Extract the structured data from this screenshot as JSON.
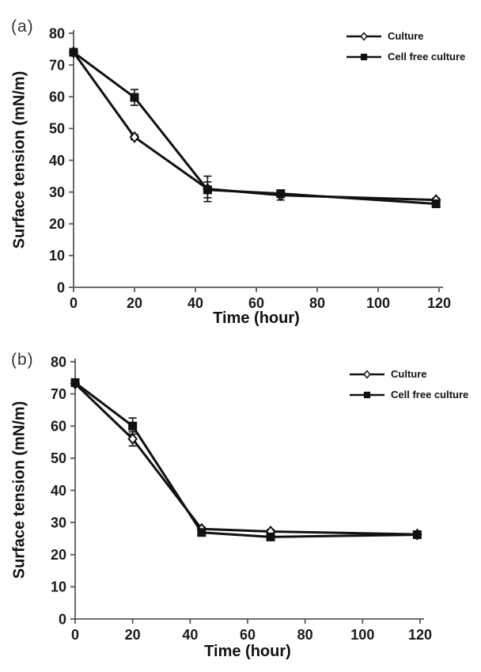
{
  "figure": {
    "background": "#ffffff"
  },
  "colors": {
    "series": "#111111",
    "axis": "#595959",
    "text": "#1a1a1a"
  },
  "chart_data": [
    {
      "type": "line",
      "panel_label": "(a)",
      "xlabel": "Time (hour)",
      "ylabel": "Surface tension (mN/m)",
      "xlim": [
        0,
        120
      ],
      "ylim": [
        0,
        80
      ],
      "xticks": [
        0,
        20,
        40,
        60,
        80,
        100,
        120
      ],
      "yticks": [
        0,
        10,
        20,
        30,
        40,
        50,
        60,
        70,
        80
      ],
      "grid": false,
      "legend_position": "top-right",
      "x": [
        0,
        20,
        44,
        68,
        119
      ],
      "series": [
        {
          "name": "Culture",
          "marker": "diamond-open",
          "values": [
            74,
            47.3,
            31,
            29,
            27.5
          ],
          "errors": [
            0.8,
            0.8,
            4,
            1.5,
            0.6
          ]
        },
        {
          "name": "Cell free culture",
          "marker": "square-filled",
          "values": [
            74,
            59.8,
            30.7,
            29.5,
            26.3
          ],
          "errors": [
            0.8,
            2.5,
            2.5,
            1,
            0.6
          ]
        }
      ]
    },
    {
      "type": "line",
      "panel_label": "(b)",
      "xlabel": "Time (hour)",
      "ylabel": "Surface tension (mN/m)",
      "xlim": [
        0,
        120
      ],
      "ylim": [
        0,
        80
      ],
      "xticks": [
        0,
        20,
        40,
        60,
        80,
        100,
        120
      ],
      "yticks": [
        0,
        10,
        20,
        30,
        40,
        50,
        60,
        70,
        80
      ],
      "grid": false,
      "legend_position": "top-right",
      "x": [
        0,
        20,
        44,
        68,
        119
      ],
      "series": [
        {
          "name": "Culture",
          "marker": "diamond-open",
          "values": [
            73.2,
            56,
            28,
            27.2,
            26.3
          ],
          "errors": [
            0.5,
            2.2,
            0.6,
            0.6,
            0.6
          ]
        },
        {
          "name": "Cell free culture",
          "marker": "square-filled",
          "values": [
            73.5,
            60,
            26.9,
            25.5,
            26.2
          ],
          "errors": [
            0.5,
            2.5,
            0.6,
            0.6,
            0.6
          ]
        }
      ]
    }
  ]
}
